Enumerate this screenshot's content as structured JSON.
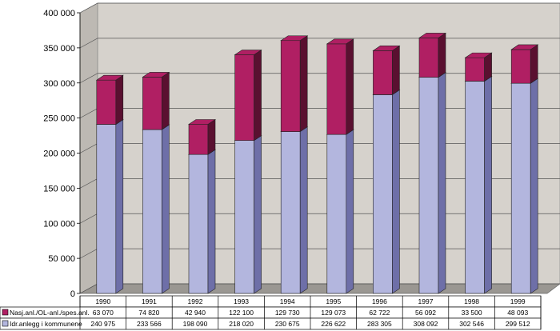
{
  "chart_data": {
    "type": "bar",
    "stacked": true,
    "three_d": true,
    "categories": [
      "1990",
      "1991",
      "1992",
      "1993",
      "1994",
      "1995",
      "1996",
      "1997",
      "1998",
      "1999"
    ],
    "series": [
      {
        "name": "Idr.anlegg i kommunene",
        "color": "#b3b6de",
        "side_color": "#6e6fa8",
        "values": [
          240975,
          233566,
          198090,
          218020,
          230675,
          226622,
          283305,
          308092,
          302546,
          299512
        ],
        "labels": [
          "240 975",
          "233 566",
          "198 090",
          "218 020",
          "230 675",
          "226 622",
          "283 305",
          "308 092",
          "302 546",
          "299 512"
        ]
      },
      {
        "name": "Nasj.anl./OL-anl./spes.anl.",
        "color": "#b01f63",
        "side_color": "#5a1030",
        "values": [
          63070,
          74820,
          42940,
          122100,
          129730,
          129073,
          62722,
          56092,
          33500,
          48093
        ],
        "labels": [
          "63 070",
          "74 820",
          "42 940",
          "122 100",
          "129 730",
          "129 073",
          "62 722",
          "56 092",
          "33 500",
          "48 093"
        ]
      }
    ],
    "ylim": [
      0,
      400000
    ],
    "yticks": [
      0,
      50000,
      100000,
      150000,
      200000,
      250000,
      300000,
      350000,
      400000
    ],
    "ytick_labels": [
      "0",
      "50 000",
      "100 000",
      "150 000",
      "200 000",
      "250 000",
      "300 000",
      "350 000",
      "400 000"
    ],
    "grid": true,
    "legend": "data-table-below",
    "wall_color": "#d6d2cc"
  }
}
